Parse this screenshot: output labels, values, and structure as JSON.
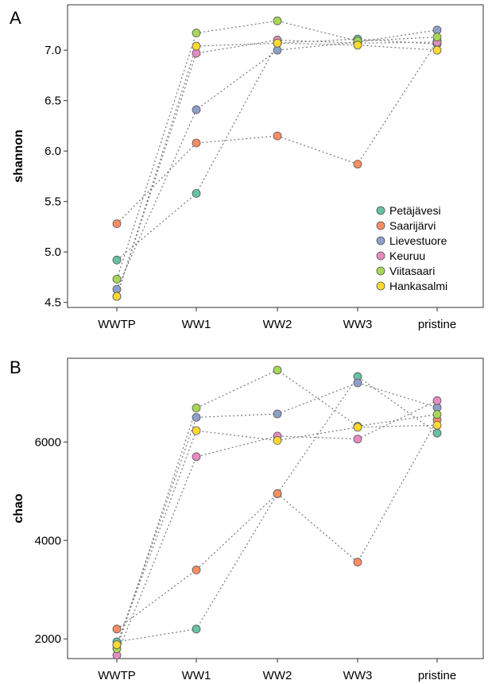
{
  "chart_data": [
    {
      "panel": "A",
      "type": "scatter",
      "title": "",
      "xlabel": "",
      "ylabel": "shannon",
      "categories": [
        "WWTP",
        "WW1",
        "WW2",
        "WW3",
        "pristine"
      ],
      "ylim": [
        4.45,
        7.45
      ],
      "yticks": [
        "4.5",
        "5.0",
        "5.5",
        "6.0",
        "6.5",
        "7.0"
      ],
      "grid": false,
      "connector": "dotted lines join each site's points",
      "legend": {
        "placement": "bottom-right"
      },
      "series": [
        {
          "name": "Petäjävesi",
          "color": "#66c2a5",
          "values": [
            4.92,
            5.58,
            7.07,
            7.11,
            7.06
          ]
        },
        {
          "name": "Saarijärvi",
          "color": "#fc8d62",
          "values": [
            5.28,
            6.08,
            6.15,
            5.87,
            7.09
          ]
        },
        {
          "name": "Lievestuore",
          "color": "#8da0cb",
          "values": [
            4.63,
            6.41,
            7.0,
            7.08,
            7.2
          ]
        },
        {
          "name": "Keuruu",
          "color": "#e78ac3",
          "values": [
            4.56,
            6.97,
            7.1,
            7.07,
            7.08
          ]
        },
        {
          "name": "Viitasaari",
          "color": "#a6d854",
          "values": [
            4.73,
            7.17,
            7.29,
            7.09,
            7.13
          ]
        },
        {
          "name": "Hankasalmi",
          "color": "#ffd92f",
          "values": [
            4.56,
            7.04,
            7.07,
            7.05,
            7.0
          ]
        }
      ]
    },
    {
      "panel": "B",
      "type": "scatter",
      "title": "",
      "xlabel": "",
      "ylabel": "chao",
      "categories": [
        "WWTP",
        "WW1",
        "WW2",
        "WW3",
        "pristine"
      ],
      "ylim": [
        1600,
        7700
      ],
      "yticks": [
        "2000",
        "4000",
        "6000"
      ],
      "grid": false,
      "connector": "dotted lines join each site's points",
      "series": [
        {
          "name": "Petäjävesi",
          "color": "#66c2a5",
          "values": [
            1940,
            2200,
            4950,
            7330,
            6180
          ]
        },
        {
          "name": "Saarijärvi",
          "color": "#fc8d62",
          "values": [
            2200,
            3400,
            4950,
            3560,
            6450
          ]
        },
        {
          "name": "Lievestuore",
          "color": "#8da0cb",
          "values": [
            1870,
            6500,
            6570,
            7200,
            6700
          ]
        },
        {
          "name": "Keuruu",
          "color": "#e78ac3",
          "values": [
            1670,
            5700,
            6120,
            6060,
            6840
          ]
        },
        {
          "name": "Viitasaari",
          "color": "#a6d854",
          "values": [
            1800,
            6690,
            7460,
            6320,
            6560
          ]
        },
        {
          "name": "Hankasalmi",
          "color": "#ffd92f",
          "values": [
            1880,
            6230,
            6030,
            6300,
            6340
          ]
        }
      ]
    }
  ]
}
